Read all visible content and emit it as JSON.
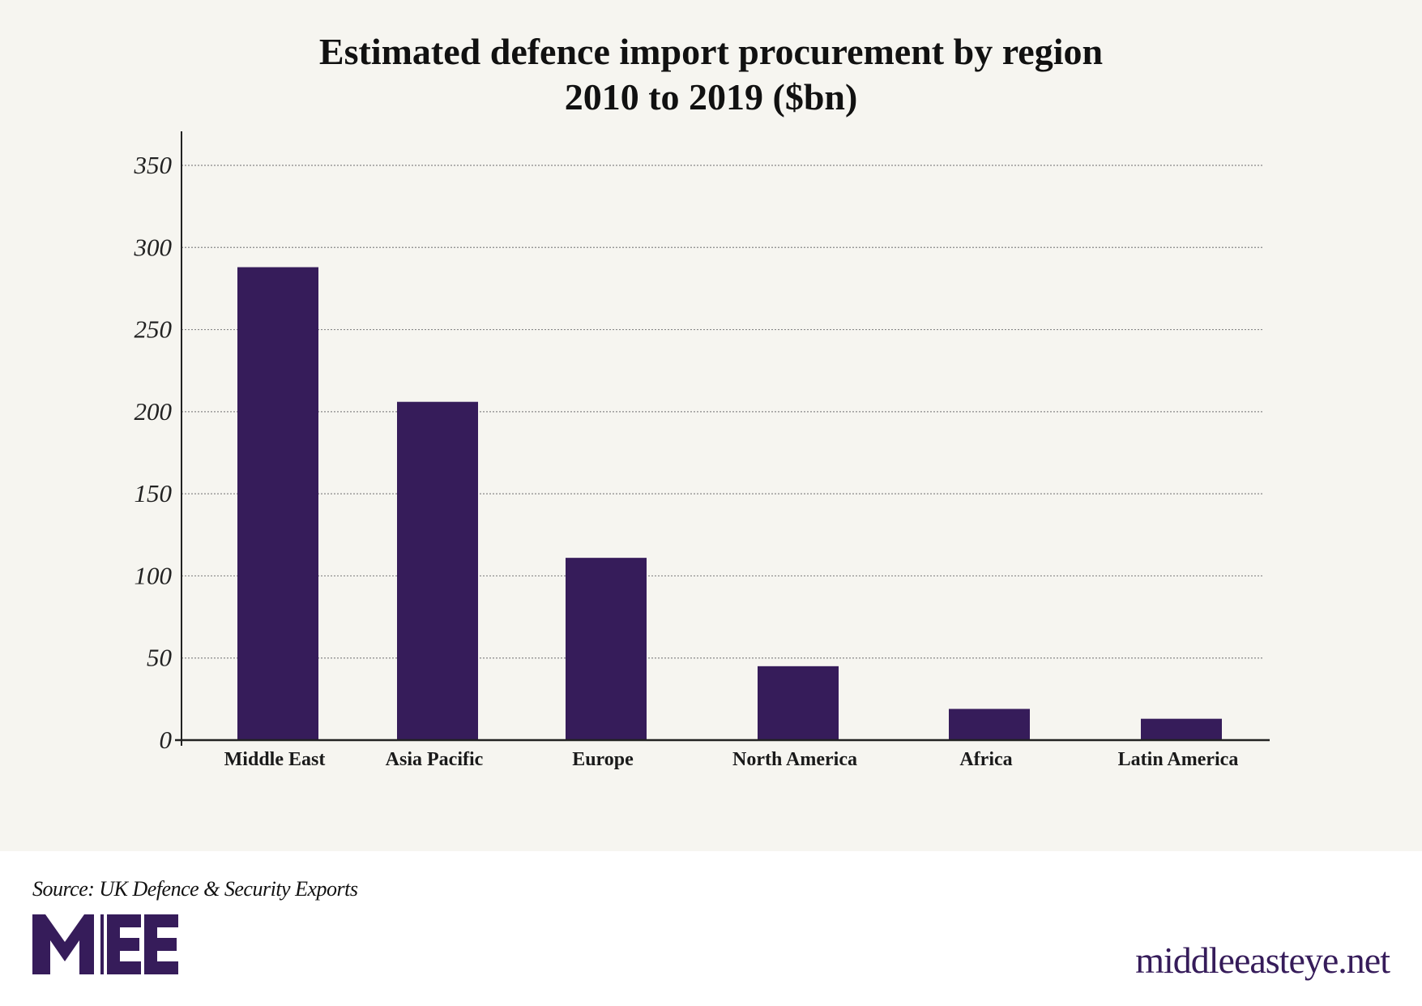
{
  "chart_data": {
    "type": "bar",
    "title_lines": [
      "Estimated defence import procurement by region",
      "2010 to 2019 ($bn)"
    ],
    "categories": [
      "Middle East",
      "Asia Pacific",
      "Europe",
      "North America",
      "Africa",
      "Latin America"
    ],
    "values": [
      288,
      206,
      111,
      45,
      19,
      13
    ],
    "ylim": [
      0,
      350
    ],
    "yticks": [
      0,
      50,
      100,
      150,
      200,
      250,
      300,
      350
    ],
    "xlabel": "",
    "ylabel": "",
    "grid": true,
    "bar_color": "#361c5a",
    "background": "#f6f5f0"
  },
  "footer": {
    "source": "Source: UK Defence & Security Exports",
    "logo_text": "MEE",
    "site": "middleeasteye.net"
  }
}
